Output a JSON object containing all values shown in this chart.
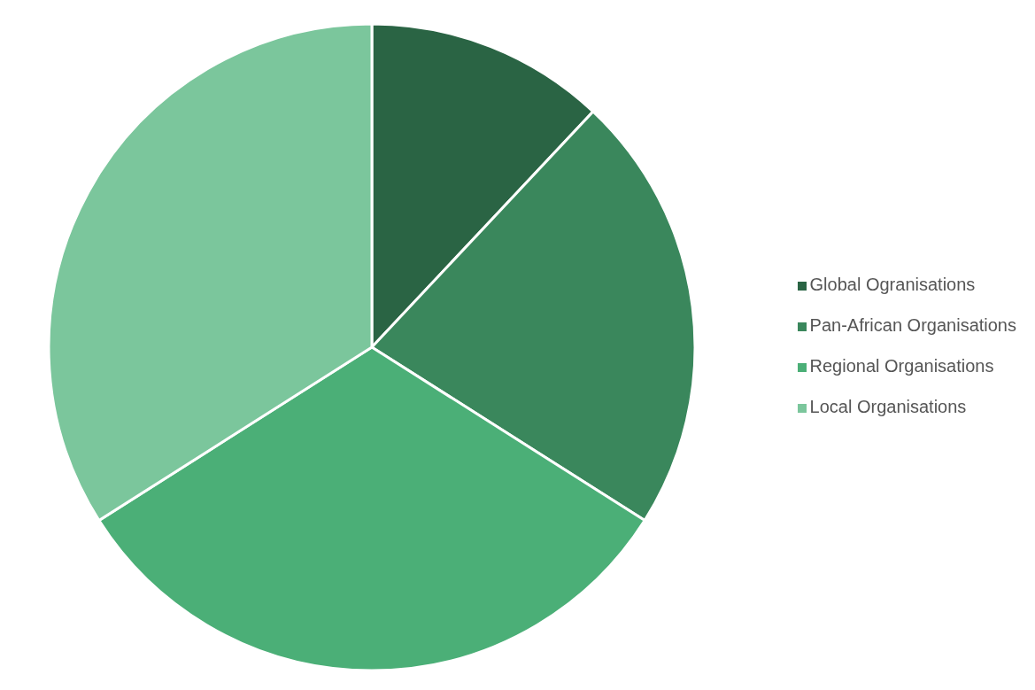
{
  "chart_data": {
    "type": "pie",
    "categories": [
      "Global Ogranisations",
      "Pan-African Organisations",
      "Regional Organisations",
      "Local Organisations"
    ],
    "values": [
      12,
      22,
      32,
      34
    ],
    "colors": [
      "#2a6444",
      "#3a875c",
      "#4baf77",
      "#7bc69c"
    ],
    "legend": "right"
  }
}
